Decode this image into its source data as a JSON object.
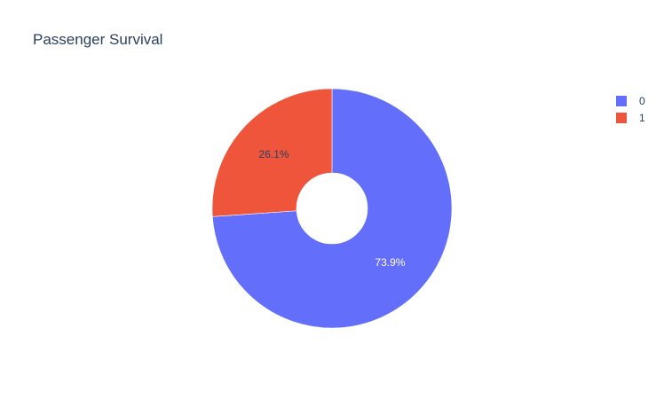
{
  "chart_data": {
    "type": "pie",
    "title": "Passenger Survival",
    "hole": true,
    "direction": "clockwise",
    "legend_position": "top-right",
    "slices": [
      {
        "label": "0",
        "value": 73.9,
        "text": "73.9%",
        "color": "#636efa",
        "text_color": "#ffffff"
      },
      {
        "label": "1",
        "value": 26.1,
        "text": "26.1%",
        "color": "#ef553b",
        "text_color": "#2a3f5f"
      }
    ]
  }
}
